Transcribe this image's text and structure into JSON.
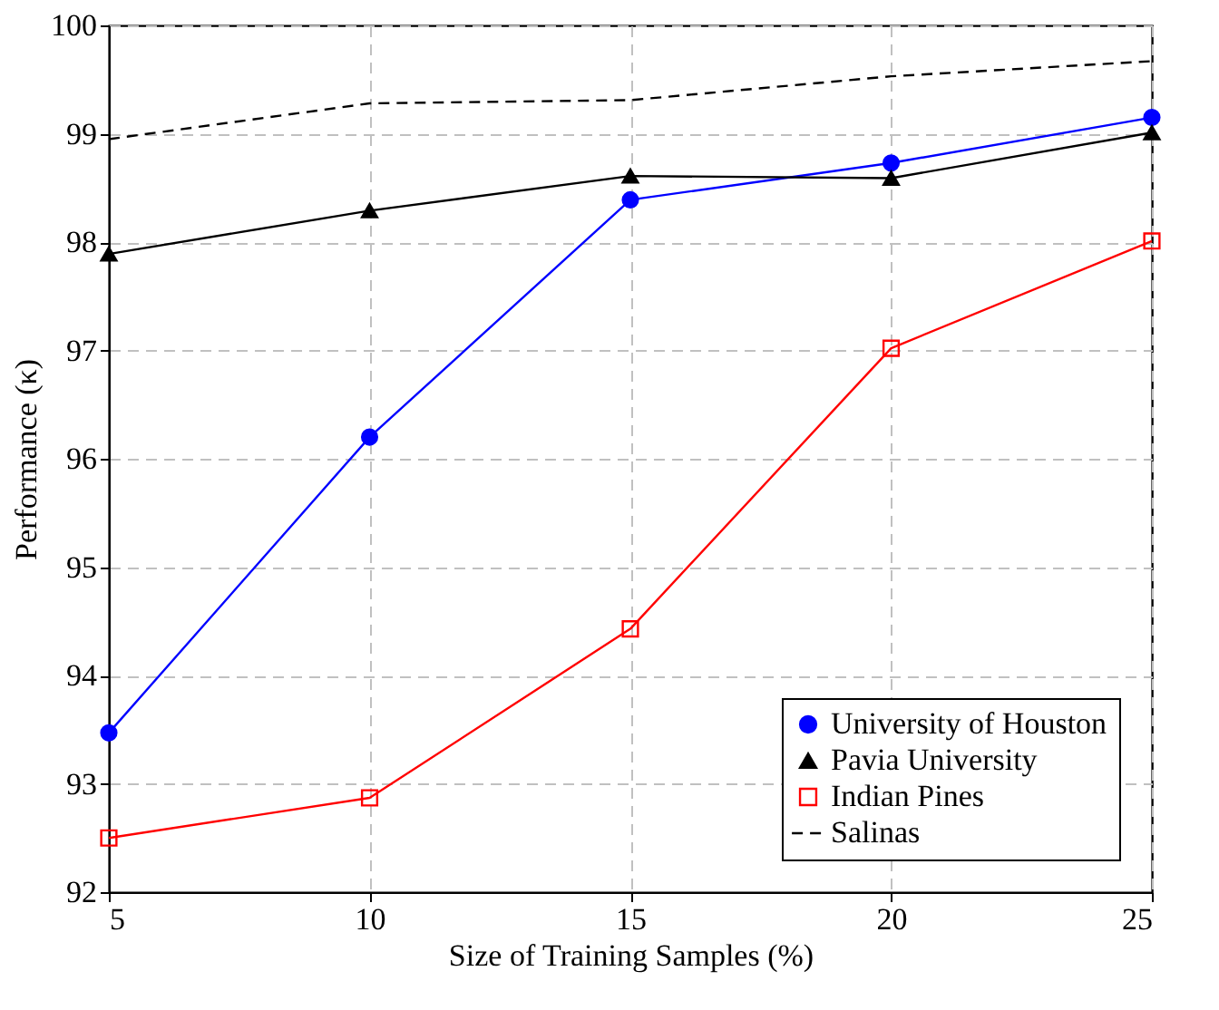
{
  "chart_data": {
    "type": "line",
    "xlabel": "Size of Training Samples (%)",
    "ylabel": "Performance (κ)",
    "x": [
      5,
      10,
      15,
      20,
      25
    ],
    "xlim": [
      5,
      25
    ],
    "xticks": [
      5,
      10,
      15,
      20,
      25
    ],
    "ylim": [
      92,
      100
    ],
    "yticks": [
      92,
      93,
      94,
      95,
      96,
      97,
      98,
      99,
      100
    ],
    "grid": true,
    "legend": "bottom right",
    "series": [
      {
        "name": "University of Houston",
        "color": "#0000ff",
        "marker": "circle",
        "line_style": "solid",
        "values": [
          93.47,
          96.2,
          98.39,
          98.73,
          99.15
        ]
      },
      {
        "name": "Pavia University",
        "color": "#000000",
        "marker": "triangle",
        "line_style": "solid",
        "values": [
          97.89,
          98.29,
          98.61,
          98.59,
          99.01
        ]
      },
      {
        "name": "Indian Pines",
        "color": "#ff0000",
        "marker": "square",
        "line_style": "solid",
        "values": [
          92.5,
          92.87,
          94.43,
          97.02,
          98.01
        ]
      },
      {
        "name": "Salinas",
        "color": "#000000",
        "marker": "none",
        "line_style": "dashed",
        "values": [
          98.95,
          99.28,
          99.31,
          99.53,
          99.67
        ]
      }
    ]
  }
}
